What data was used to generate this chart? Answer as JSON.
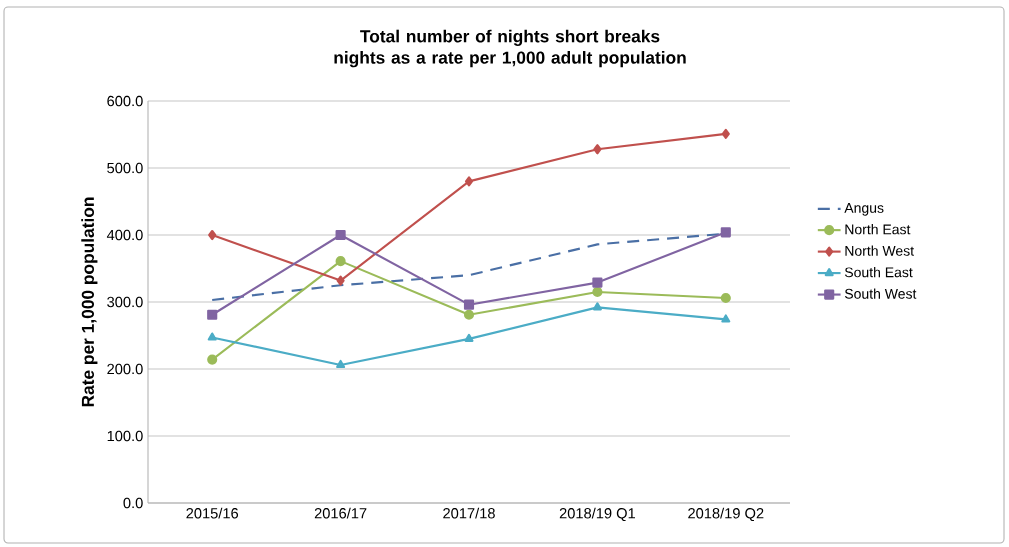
{
  "chart_data": {
    "type": "line",
    "title": "Total number of nights short breaks nights as a rate per 1,000 adult population",
    "ylabel": "Rate per 1,000 population",
    "categories": [
      "2015/16",
      "2016/17",
      "2017/18",
      "2018/19 Q1",
      "2018/19 Q2"
    ],
    "series": [
      {
        "name": "Angus",
        "color": "#4a6fa5",
        "marker": "none",
        "line_style": "dashed",
        "values": [
          303,
          325,
          340,
          386,
          402
        ]
      },
      {
        "name": "North East",
        "color": "#9bbb59",
        "marker": "circle",
        "line_style": "solid",
        "values": [
          214,
          361,
          281,
          315,
          306
        ]
      },
      {
        "name": "North West",
        "color": "#c0504d",
        "marker": "diamond",
        "line_style": "solid",
        "values": [
          400,
          332,
          480,
          528,
          551
        ]
      },
      {
        "name": "South East",
        "color": "#4bacc6",
        "marker": "triangle",
        "line_style": "solid",
        "values": [
          247,
          206,
          245,
          292,
          274
        ]
      },
      {
        "name": "South West",
        "color": "#8064a2",
        "marker": "square",
        "line_style": "solid",
        "values": [
          281,
          400,
          296,
          329,
          404
        ]
      }
    ],
    "ylim": [
      0,
      600
    ],
    "yticks": [
      {
        "value": 0,
        "label": "0.0"
      },
      {
        "value": 100,
        "label": "100.0"
      },
      {
        "value": 200,
        "label": "200.0"
      },
      {
        "value": 300,
        "label": "300.0"
      },
      {
        "value": 400,
        "label": "400.0"
      },
      {
        "value": 500,
        "label": "500.0"
      },
      {
        "value": 600,
        "label": "600.0"
      }
    ],
    "grid": "y",
    "legend": "right"
  }
}
